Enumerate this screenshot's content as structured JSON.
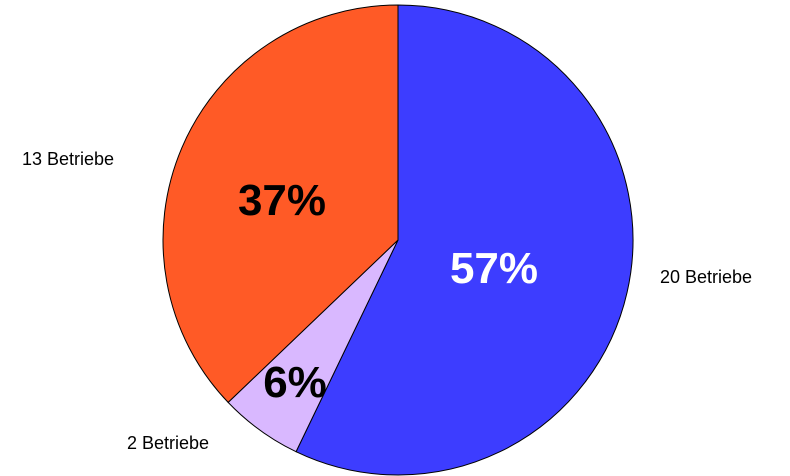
{
  "chart_data": {
    "type": "pie",
    "title": "",
    "start_angle_deg": 0,
    "direction": "clockwise",
    "slices": [
      {
        "label": "20 Betriebe",
        "value": 20,
        "percent_label": "57%",
        "color": "#3d3dff",
        "percent_color": "#ffffff"
      },
      {
        "label": "2 Betriebe",
        "value": 2,
        "percent_label": "6%",
        "color": "#d9b8ff",
        "percent_color": "#000000"
      },
      {
        "label": "13 Betriebe",
        "value": 13,
        "percent_label": "37%",
        "color": "#ff5a26",
        "percent_color": "#000000"
      }
    ],
    "legend": "none"
  }
}
